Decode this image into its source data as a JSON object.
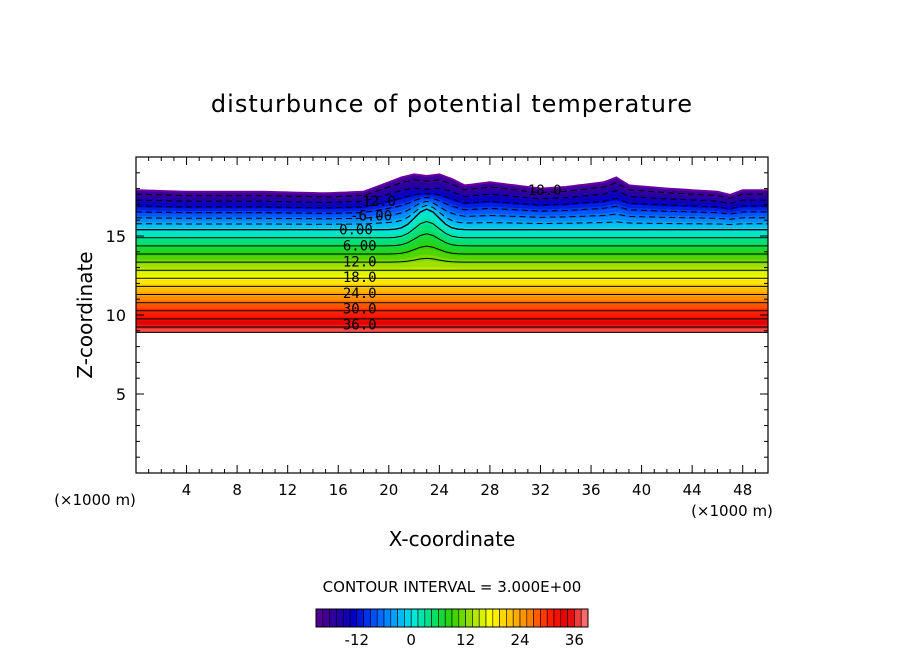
{
  "chart_data": {
    "type": "heatmap",
    "title": "disturbunce of potential temperature",
    "xlabel": "X-coordinate",
    "ylabel": "Z-coordinate",
    "x_unit": "(×1000 m)",
    "z_unit": "(×1000 m)",
    "xlim": [
      0,
      50
    ],
    "ylim": [
      0,
      20
    ],
    "x_ticks": [
      "4",
      "8",
      "12",
      "16",
      "20",
      "24",
      "28",
      "32",
      "36",
      "40",
      "44",
      "48"
    ],
    "y_ticks": [
      "5",
      "10",
      "15"
    ],
    "contour_interval_text": "CONTOUR INTERVAL = 3.000E+00",
    "contour_labels": [
      {
        "text": "-18.0",
        "x": 32.0,
        "z": 17.9
      },
      {
        "text": "-12.0",
        "x": 18.9,
        "z": 17.2
      },
      {
        "text": "-6.00",
        "x": 18.6,
        "z": 16.3
      },
      {
        "text": "0.00",
        "x": 17.4,
        "z": 15.4
      },
      {
        "text": "6.00",
        "x": 17.7,
        "z": 14.4
      },
      {
        "text": "12.0",
        "x": 17.7,
        "z": 13.4
      },
      {
        "text": "18.0",
        "x": 17.7,
        "z": 12.4
      },
      {
        "text": "24.0",
        "x": 17.7,
        "z": 11.4
      },
      {
        "text": "30.0",
        "x": 17.7,
        "z": 10.4
      },
      {
        "text": "36.0",
        "x": 17.7,
        "z": 9.4
      }
    ],
    "field": {
      "bottom_z": 8.9,
      "top_z_profile": [
        [
          0,
          17.9
        ],
        [
          4,
          17.8
        ],
        [
          10,
          17.8
        ],
        [
          15,
          17.7
        ],
        [
          18,
          17.8
        ],
        [
          19,
          18.1
        ],
        [
          20,
          18.4
        ],
        [
          21,
          18.7
        ],
        [
          22,
          18.9
        ],
        [
          23,
          18.8
        ],
        [
          24,
          18.9
        ],
        [
          25,
          18.6
        ],
        [
          26,
          18.2
        ],
        [
          28,
          18.4
        ],
        [
          30,
          18.2
        ],
        [
          32,
          18.0
        ],
        [
          34,
          18.1
        ],
        [
          36,
          18.3
        ],
        [
          37,
          18.4
        ],
        [
          38,
          18.7
        ],
        [
          39,
          18.2
        ],
        [
          42,
          18.0
        ],
        [
          46,
          17.8
        ],
        [
          47,
          17.6
        ],
        [
          48,
          17.9
        ],
        [
          50,
          17.9
        ]
      ],
      "value_at_bottom": 38,
      "value_at_top": -20,
      "zero_level_z": 15.4,
      "bump_center_x": 23,
      "bump_height": 1.3
    },
    "colorbar": {
      "vmin": -21,
      "vmax": 39,
      "ticks": [
        "-12",
        "0",
        "12",
        "24",
        "36"
      ],
      "tick_values": [
        -12,
        0,
        12,
        24,
        36
      ],
      "colors": [
        "#5a0090",
        "#2a00a0",
        "#0000c8",
        "#0050ff",
        "#00a0ff",
        "#00e8e0",
        "#00e070",
        "#30d000",
        "#a0e000",
        "#ffff00",
        "#ffc000",
        "#ff8000",
        "#ff2000",
        "#e00000",
        "#ff8080"
      ]
    }
  }
}
